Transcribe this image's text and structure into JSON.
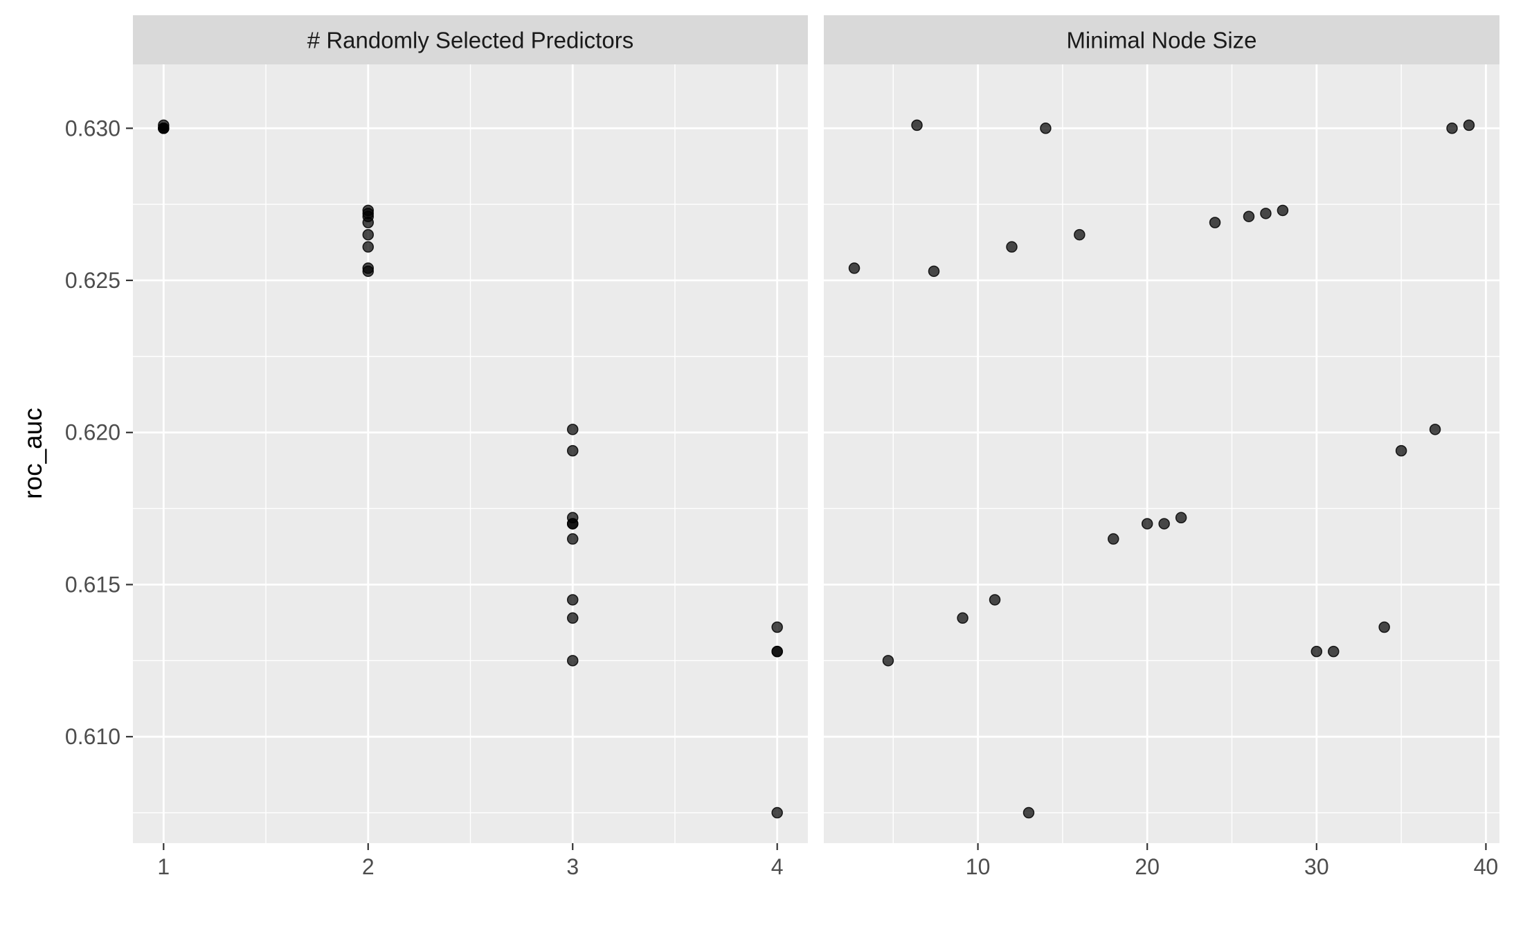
{
  "chart_data": {
    "type": "scatter",
    "y_axis_title": "roc_auc",
    "point_color": "#333333",
    "panel_background": "#ebebeb",
    "strip_background": "#d9d9d9",
    "grid": true,
    "legend": "none",
    "ylim": [
      0.6065,
      0.6321
    ],
    "yticks": [
      0.61,
      0.615,
      0.62,
      0.625,
      0.63
    ],
    "ytick_labels": [
      "0.610",
      "0.615",
      "0.620",
      "0.625",
      "0.630"
    ],
    "panels": [
      {
        "strip_label": "# Randomly Selected Predictors",
        "xlim": [
          0.85,
          4.15
        ],
        "xticks": [
          1,
          2,
          3,
          4
        ],
        "xtick_labels": [
          "1",
          "2",
          "3",
          "4"
        ],
        "points": [
          {
            "x": 1,
            "y": 0.6301
          },
          {
            "x": 1,
            "y": 0.63
          },
          {
            "x": 1,
            "y": 0.63
          },
          {
            "x": 1,
            "y": 0.63
          },
          {
            "x": 2,
            "y": 0.6273
          },
          {
            "x": 2,
            "y": 0.6272
          },
          {
            "x": 2,
            "y": 0.6271
          },
          {
            "x": 2,
            "y": 0.6269
          },
          {
            "x": 2,
            "y": 0.6265
          },
          {
            "x": 2,
            "y": 0.6261
          },
          {
            "x": 2,
            "y": 0.6254
          },
          {
            "x": 2,
            "y": 0.6253
          },
          {
            "x": 3,
            "y": 0.6201
          },
          {
            "x": 3,
            "y": 0.6194
          },
          {
            "x": 3,
            "y": 0.6172
          },
          {
            "x": 3,
            "y": 0.617
          },
          {
            "x": 3,
            "y": 0.617
          },
          {
            "x": 3,
            "y": 0.6165
          },
          {
            "x": 3,
            "y": 0.6145
          },
          {
            "x": 3,
            "y": 0.6139
          },
          {
            "x": 3,
            "y": 0.6125
          },
          {
            "x": 4,
            "y": 0.6136
          },
          {
            "x": 4,
            "y": 0.6128
          },
          {
            "x": 4,
            "y": 0.6128
          },
          {
            "x": 4,
            "y": 0.6075
          }
        ]
      },
      {
        "strip_label": "Minimal Node Size",
        "xlim": [
          0.9,
          40.8
        ],
        "xticks": [
          10,
          20,
          30,
          40
        ],
        "xtick_labels": [
          "10",
          "20",
          "30",
          "40"
        ],
        "points": [
          {
            "x": 2.7,
            "y": 0.6254
          },
          {
            "x": 4.7,
            "y": 0.6125
          },
          {
            "x": 6.4,
            "y": 0.6301
          },
          {
            "x": 7.4,
            "y": 0.6253
          },
          {
            "x": 9.1,
            "y": 0.6139
          },
          {
            "x": 11.0,
            "y": 0.6145
          },
          {
            "x": 12.0,
            "y": 0.6261
          },
          {
            "x": 13.0,
            "y": 0.6075
          },
          {
            "x": 14.0,
            "y": 0.63
          },
          {
            "x": 16.0,
            "y": 0.6265
          },
          {
            "x": 18.0,
            "y": 0.6165
          },
          {
            "x": 20.0,
            "y": 0.617
          },
          {
            "x": 21.0,
            "y": 0.617
          },
          {
            "x": 22.0,
            "y": 0.6172
          },
          {
            "x": 24.0,
            "y": 0.6269
          },
          {
            "x": 26.0,
            "y": 0.6271
          },
          {
            "x": 27.0,
            "y": 0.6272
          },
          {
            "x": 28.0,
            "y": 0.6273
          },
          {
            "x": 30.0,
            "y": 0.6128
          },
          {
            "x": 31.0,
            "y": 0.6128
          },
          {
            "x": 34.0,
            "y": 0.6136
          },
          {
            "x": 35.0,
            "y": 0.6194
          },
          {
            "x": 37.0,
            "y": 0.6201
          },
          {
            "x": 38.0,
            "y": 0.63
          },
          {
            "x": 39.0,
            "y": 0.6301
          }
        ]
      }
    ]
  }
}
